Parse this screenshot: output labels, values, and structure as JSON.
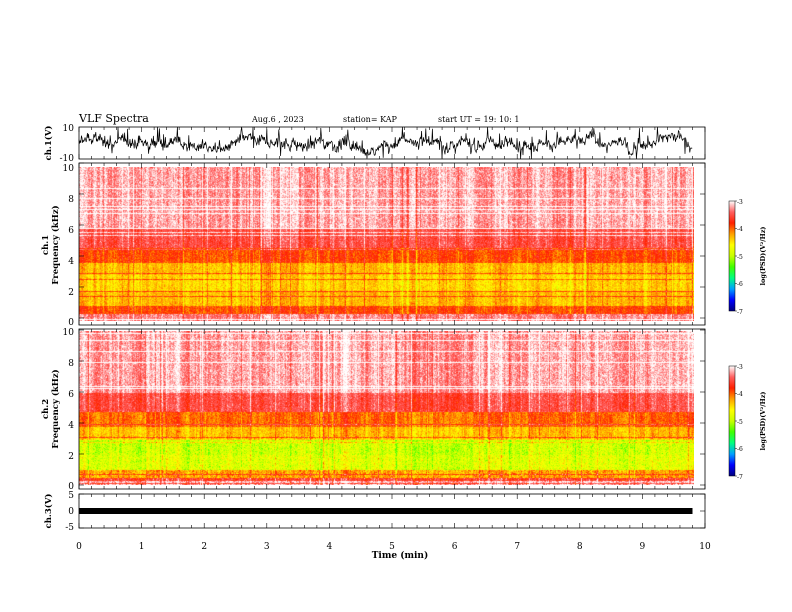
{
  "header": {
    "title": "VLF Spectra",
    "date": "Aug.6 , 2023",
    "station": "station= KAP",
    "start_ut": "start UT = 19: 10: 1"
  },
  "colors": {
    "waveform": "#000000",
    "colormap": [
      "#00007f",
      "#0000ff",
      "#00a0ff",
      "#00ff80",
      "#40ff00",
      "#c8ff00",
      "#ffff00",
      "#ffa000",
      "#ff2000",
      "#ff6060",
      "#ffffff"
    ]
  },
  "chart_data": [
    {
      "type": "line",
      "name": "ch1-waveform",
      "ylabel": "ch.1(V)",
      "ylim": [
        -10,
        10
      ],
      "yticks": [
        "10",
        "-10"
      ],
      "xlim": [
        0,
        10
      ],
      "x_extent_min": 9.8,
      "grid": false
    },
    {
      "type": "heatmap",
      "name": "ch1-spectrogram",
      "ylabel_line1": "ch.1",
      "ylabel_line2": "Frequency (kHz)",
      "ylim": [
        0,
        10
      ],
      "yticks": [
        "0",
        "2",
        "4",
        "6",
        "8",
        "10"
      ],
      "xlim": [
        0,
        10
      ],
      "x_extent_min": 9.8,
      "colorbar": {
        "label": "log(PSD)(V²/Hz)",
        "range": [
          -7,
          -3
        ],
        "ticks": [
          "-3",
          "-4",
          "-5",
          "-6",
          "-7"
        ]
      },
      "bands_khz": [
        {
          "from": 0.0,
          "to": 0.5,
          "level": -3.3
        },
        {
          "from": 0.5,
          "to": 1.0,
          "level": -3.9
        },
        {
          "from": 1.0,
          "to": 2.0,
          "level": -4.3
        },
        {
          "from": 2.0,
          "to": 3.0,
          "level": -4.4
        },
        {
          "from": 3.0,
          "to": 3.8,
          "level": -4.3
        },
        {
          "from": 3.8,
          "to": 4.8,
          "level": -3.9
        },
        {
          "from": 4.8,
          "to": 6.0,
          "level": -3.5
        },
        {
          "from": 6.0,
          "to": 10.0,
          "level": -3.2
        }
      ]
    },
    {
      "type": "heatmap",
      "name": "ch2-spectrogram",
      "ylabel_line1": "ch.2",
      "ylabel_line2": "Frequency (kHz)",
      "ylim": [
        0,
        10
      ],
      "yticks": [
        "0",
        "2",
        "4",
        "6",
        "8",
        "10"
      ],
      "xlim": [
        0,
        10
      ],
      "x_extent_min": 9.8,
      "colorbar": {
        "label": "log(PSD)(V²/Hz)",
        "range": [
          -7,
          -3
        ],
        "ticks": [
          "-3",
          "-4",
          "-5",
          "-6",
          "-7"
        ]
      },
      "bands_khz": [
        {
          "from": 0.0,
          "to": 0.5,
          "level": -3.6
        },
        {
          "from": 0.5,
          "to": 1.0,
          "level": -4.2
        },
        {
          "from": 1.0,
          "to": 2.0,
          "level": -4.8
        },
        {
          "from": 2.0,
          "to": 3.0,
          "level": -4.9
        },
        {
          "from": 3.0,
          "to": 3.8,
          "level": -4.3
        },
        {
          "from": 3.8,
          "to": 4.8,
          "level": -4.0
        },
        {
          "from": 4.8,
          "to": 6.0,
          "level": -3.5
        },
        {
          "from": 6.0,
          "to": 10.0,
          "level": -3.2
        }
      ]
    },
    {
      "type": "line",
      "name": "ch3-waveform",
      "ylabel": "ch.3(V)",
      "ylim": [
        -5,
        5
      ],
      "yticks": [
        "5",
        "0",
        "-5"
      ],
      "level_v": 0.0,
      "xlim": [
        0,
        10
      ],
      "x_extent_min": 9.8,
      "grid": false
    }
  ],
  "x_axis": {
    "label": "Time (min)",
    "ticks": [
      "0",
      "1",
      "2",
      "3",
      "4",
      "5",
      "6",
      "7",
      "8",
      "9",
      "10"
    ]
  }
}
